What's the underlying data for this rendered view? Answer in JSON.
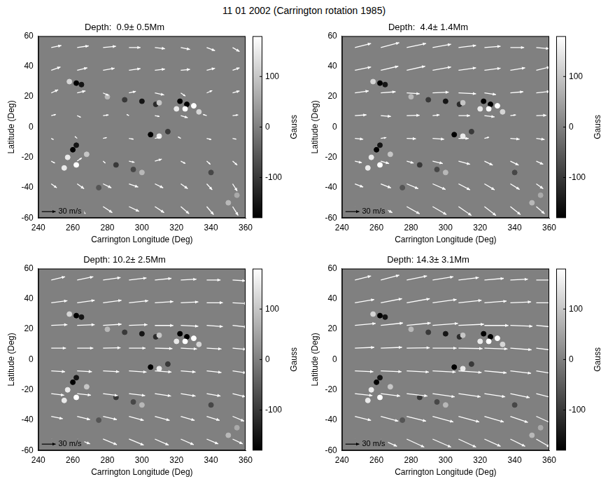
{
  "title": "11 01 2002 (Carrington rotation 1985)",
  "chart_data": [
    {
      "type": "quiver",
      "title": "Depth:  0.9± 0.5Mm",
      "x_label": "Carrington Longitude (Deg)",
      "y_label": "Latitude (Deg)",
      "xlim": [
        240,
        360
      ],
      "xticks": [
        240,
        260,
        280,
        300,
        320,
        340,
        360
      ],
      "ylim": [
        -60,
        60
      ],
      "yticks": [
        -60,
        -40,
        -20,
        0,
        20,
        40,
        60
      ],
      "grid": false,
      "colorbar_label": "Gauss",
      "colorbar_range": [
        -180,
        180
      ],
      "colorbar_ticks": [
        -100,
        0,
        100
      ],
      "key_label": "30 m/s",
      "key_value": 30,
      "grid_x": [
        247.5,
        262.5,
        277.5,
        292.5,
        307.5,
        322.5,
        337.5,
        352.5
      ],
      "grid_y": [
        -52.5,
        -37.5,
        -22.5,
        -7.5,
        7.5,
        22.5,
        37.5,
        52.5
      ],
      "u": [
        [
          15,
          18,
          20,
          22,
          20,
          18,
          15,
          12
        ],
        [
          12,
          15,
          18,
          20,
          18,
          15,
          12,
          10
        ],
        [
          8,
          10,
          5,
          12,
          15,
          10,
          8,
          10
        ],
        [
          5,
          -5,
          8,
          10,
          12,
          -6,
          10,
          8
        ],
        [
          10,
          8,
          12,
          -5,
          10,
          15,
          -8,
          12
        ],
        [
          15,
          18,
          12,
          15,
          20,
          10,
          12,
          15
        ],
        [
          20,
          22,
          25,
          25,
          22,
          20,
          18,
          15
        ],
        [
          22,
          25,
          28,
          25,
          22,
          20,
          18,
          15
        ]
      ],
      "v": [
        [
          -15,
          -18,
          -15,
          -12,
          -15,
          -18,
          -20,
          -22
        ],
        [
          -10,
          -12,
          -10,
          -8,
          -10,
          -12,
          -15,
          -18
        ],
        [
          -5,
          8,
          -5,
          -3,
          5,
          -6,
          -8,
          -10
        ],
        [
          -3,
          5,
          2,
          -2,
          3,
          4,
          -3,
          -2
        ],
        [
          3,
          -4,
          2,
          3,
          -2,
          -5,
          3,
          2
        ],
        [
          8,
          5,
          -6,
          4,
          -5,
          -8,
          6,
          5
        ],
        [
          8,
          6,
          5,
          4,
          3,
          2,
          5,
          6
        ],
        [
          5,
          4,
          3,
          0,
          -3,
          -5,
          -8,
          -10
        ]
      ],
      "magnetic_field": {
        "x": [
          262,
          265,
          258,
          300,
          308,
          310,
          322,
          326,
          325,
          330,
          320,
          333,
          290,
          280,
          260,
          262,
          257,
          262,
          255,
          268,
          305,
          310,
          315,
          285,
          295,
          300,
          340,
          350,
          355,
          275
        ],
        "y": [
          29,
          28,
          30,
          17,
          15,
          16,
          17,
          15,
          12,
          14,
          12,
          10,
          18,
          20,
          -15,
          -12,
          -20,
          -25,
          -27,
          -18,
          -5,
          -6,
          -3,
          -25,
          -28,
          -30,
          -30,
          -50,
          -45,
          -40
        ],
        "gauss": [
          -180,
          -150,
          120,
          -150,
          -120,
          100,
          -180,
          -180,
          180,
          180,
          150,
          120,
          -100,
          80,
          -180,
          -150,
          150,
          180,
          150,
          100,
          -180,
          150,
          -100,
          -100,
          -80,
          80,
          -80,
          80,
          60,
          -60
        ]
      }
    },
    {
      "type": "quiver",
      "title": "Depth:  4.4± 1.4Mm",
      "x_label": "Carrington Longitude (Deg)",
      "y_label": "Latitude (Deg)",
      "xlim": [
        240,
        360
      ],
      "xticks": [
        240,
        260,
        280,
        300,
        320,
        340,
        360
      ],
      "ylim": [
        -60,
        60
      ],
      "yticks": [
        -60,
        -40,
        -20,
        0,
        20,
        40,
        60
      ],
      "grid": false,
      "colorbar_label": "Gauss",
      "colorbar_range": [
        -180,
        180
      ],
      "colorbar_ticks": [
        -100,
        0,
        100
      ],
      "key_label": "30 m/s",
      "key_value": 30,
      "grid_x": [
        247.5,
        262.5,
        277.5,
        292.5,
        307.5,
        322.5,
        337.5,
        352.5
      ],
      "grid_y": [
        -52.5,
        -37.5,
        -22.5,
        -7.5,
        7.5,
        22.5,
        37.5,
        52.5
      ],
      "u": [
        [
          20,
          25,
          28,
          30,
          28,
          25,
          22,
          18
        ],
        [
          18,
          22,
          25,
          28,
          25,
          22,
          20,
          15
        ],
        [
          15,
          18,
          15,
          22,
          25,
          18,
          18,
          15
        ],
        [
          18,
          12,
          20,
          25,
          22,
          10,
          20,
          18
        ],
        [
          25,
          22,
          28,
          15,
          25,
          22,
          12,
          22
        ],
        [
          30,
          32,
          28,
          35,
          38,
          25,
          28,
          30
        ],
        [
          35,
          38,
          40,
          40,
          38,
          35,
          32,
          30
        ],
        [
          35,
          40,
          42,
          40,
          38,
          35,
          30,
          28
        ]
      ],
      "v": [
        [
          -12,
          -15,
          -18,
          -20,
          -22,
          -22,
          -20,
          -18
        ],
        [
          -8,
          -10,
          -12,
          -14,
          -15,
          -15,
          -14,
          -12
        ],
        [
          -4,
          -6,
          -5,
          -6,
          -8,
          -10,
          -10,
          -8
        ],
        [
          -2,
          2,
          -1,
          -2,
          0,
          3,
          -2,
          -3
        ],
        [
          2,
          -2,
          1,
          2,
          0,
          -3,
          2,
          1
        ],
        [
          5,
          3,
          -2,
          2,
          -2,
          -4,
          3,
          4
        ],
        [
          8,
          10,
          10,
          8,
          6,
          5,
          6,
          8
        ],
        [
          10,
          12,
          10,
          8,
          5,
          3,
          0,
          -3
        ]
      ],
      "magnetic_field": {
        "x": [
          262,
          265,
          258,
          300,
          308,
          310,
          322,
          326,
          325,
          330,
          320,
          333,
          290,
          280,
          260,
          262,
          257,
          262,
          255,
          268,
          305,
          310,
          315,
          285,
          295,
          300,
          340,
          350,
          355,
          275
        ],
        "y": [
          29,
          28,
          30,
          17,
          15,
          16,
          17,
          15,
          12,
          14,
          12,
          10,
          18,
          20,
          -15,
          -12,
          -20,
          -25,
          -27,
          -18,
          -5,
          -6,
          -3,
          -25,
          -28,
          -30,
          -30,
          -50,
          -45,
          -40
        ],
        "gauss": [
          -180,
          -150,
          120,
          -150,
          -120,
          100,
          -180,
          -180,
          180,
          180,
          150,
          120,
          -100,
          80,
          -180,
          -150,
          150,
          180,
          150,
          100,
          -180,
          150,
          -100,
          -100,
          -80,
          80,
          -80,
          80,
          60,
          -60
        ]
      }
    },
    {
      "type": "quiver",
      "title": "Depth: 10.2± 2.5Mm",
      "x_label": "Carrington Longitude (Deg)",
      "y_label": "Latitude (Deg)",
      "xlim": [
        240,
        360
      ],
      "xticks": [
        240,
        260,
        280,
        300,
        320,
        340,
        360
      ],
      "ylim": [
        -60,
        60
      ],
      "yticks": [
        -60,
        -40,
        -20,
        0,
        20,
        40,
        60
      ],
      "grid": false,
      "colorbar_label": "Gauss",
      "colorbar_range": [
        -180,
        180
      ],
      "colorbar_ticks": [
        -100,
        0,
        100
      ],
      "key_label": "30 m/s",
      "key_value": 30,
      "grid_x": [
        247.5,
        262.5,
        277.5,
        292.5,
        307.5,
        322.5,
        337.5,
        352.5
      ],
      "grid_y": [
        -52.5,
        -37.5,
        -22.5,
        -7.5,
        7.5,
        22.5,
        37.5,
        52.5
      ],
      "u": [
        [
          25,
          28,
          30,
          32,
          30,
          28,
          25,
          22
        ],
        [
          25,
          28,
          30,
          32,
          32,
          30,
          28,
          25
        ],
        [
          28,
          30,
          32,
          35,
          35,
          32,
          30,
          28
        ],
        [
          30,
          32,
          35,
          38,
          36,
          32,
          32,
          30
        ],
        [
          32,
          35,
          38,
          36,
          38,
          35,
          32,
          30
        ],
        [
          35,
          38,
          40,
          40,
          40,
          38,
          35,
          32
        ],
        [
          35,
          38,
          40,
          42,
          40,
          38,
          35,
          32
        ],
        [
          30,
          35,
          38,
          38,
          36,
          34,
          30,
          28
        ]
      ],
      "v": [
        [
          -10,
          -12,
          -14,
          -15,
          -15,
          -14,
          -12,
          -12
        ],
        [
          -6,
          -8,
          -8,
          -10,
          -10,
          -10,
          -10,
          -12
        ],
        [
          -4,
          -4,
          -5,
          -5,
          -6,
          -6,
          -6,
          -8
        ],
        [
          -2,
          -2,
          -2,
          -3,
          -3,
          -3,
          -4,
          -5
        ],
        [
          0,
          0,
          1,
          0,
          -1,
          -2,
          -2,
          -3
        ],
        [
          2,
          2,
          3,
          2,
          0,
          -2,
          -3,
          -4
        ],
        [
          5,
          6,
          6,
          5,
          3,
          2,
          0,
          -2
        ],
        [
          8,
          8,
          6,
          5,
          4,
          2,
          0,
          -2
        ]
      ],
      "magnetic_field": {
        "x": [
          262,
          265,
          258,
          300,
          308,
          310,
          322,
          326,
          325,
          330,
          320,
          333,
          290,
          280,
          260,
          262,
          257,
          262,
          255,
          268,
          305,
          310,
          315,
          285,
          295,
          300,
          340,
          350,
          355,
          275
        ],
        "y": [
          29,
          28,
          30,
          17,
          15,
          16,
          17,
          15,
          12,
          14,
          12,
          10,
          18,
          20,
          -15,
          -12,
          -20,
          -25,
          -27,
          -18,
          -5,
          -6,
          -3,
          -25,
          -28,
          -30,
          -30,
          -50,
          -45,
          -40
        ],
        "gauss": [
          -180,
          -150,
          120,
          -150,
          -120,
          100,
          -180,
          -180,
          180,
          180,
          150,
          120,
          -100,
          80,
          -180,
          -150,
          150,
          180,
          150,
          100,
          -180,
          150,
          -100,
          -100,
          -80,
          80,
          -80,
          80,
          60,
          -60
        ]
      }
    },
    {
      "type": "quiver",
      "title": "Depth: 14.3± 3.1Mm",
      "x_label": "Carrington Longitude (Deg)",
      "y_label": "Latitude (Deg)",
      "xlim": [
        240,
        360
      ],
      "xticks": [
        240,
        260,
        280,
        300,
        320,
        340,
        360
      ],
      "ylim": [
        -60,
        60
      ],
      "yticks": [
        -60,
        -40,
        -20,
        0,
        20,
        40,
        60
      ],
      "grid": false,
      "colorbar_label": "Gauss",
      "colorbar_range": [
        -180,
        180
      ],
      "colorbar_ticks": [
        -100,
        0,
        100
      ],
      "key_label": "30 m/s",
      "key_value": 30,
      "grid_x": [
        247.5,
        262.5,
        277.5,
        292.5,
        307.5,
        322.5,
        337.5,
        352.5
      ],
      "grid_y": [
        -52.5,
        -37.5,
        -22.5,
        -7.5,
        7.5,
        22.5,
        37.5,
        52.5
      ],
      "u": [
        [
          30,
          35,
          38,
          40,
          38,
          35,
          32,
          30
        ],
        [
          35,
          38,
          42,
          45,
          45,
          42,
          38,
          35
        ],
        [
          38,
          42,
          45,
          48,
          48,
          45,
          42,
          40
        ],
        [
          40,
          45,
          48,
          50,
          50,
          48,
          45,
          42
        ],
        [
          42,
          46,
          50,
          52,
          52,
          50,
          46,
          42
        ],
        [
          45,
          48,
          52,
          55,
          55,
          52,
          48,
          45
        ],
        [
          42,
          46,
          50,
          52,
          50,
          48,
          45,
          42
        ],
        [
          35,
          40,
          44,
          45,
          44,
          42,
          38,
          35
        ]
      ],
      "v": [
        [
          -15,
          -18,
          -20,
          -20,
          -20,
          -18,
          -18,
          -20
        ],
        [
          -10,
          -12,
          -12,
          -14,
          -14,
          -14,
          -15,
          -18
        ],
        [
          -5,
          -6,
          -6,
          -8,
          -8,
          -8,
          -10,
          -12
        ],
        [
          -2,
          -2,
          -3,
          -3,
          -4,
          -5,
          -6,
          -8
        ],
        [
          2,
          2,
          1,
          0,
          -1,
          -2,
          -4,
          -6
        ],
        [
          5,
          6,
          6,
          5,
          3,
          0,
          -2,
          -5
        ],
        [
          8,
          10,
          10,
          8,
          6,
          4,
          2,
          0
        ],
        [
          10,
          12,
          10,
          8,
          6,
          4,
          2,
          0
        ]
      ],
      "magnetic_field": {
        "x": [
          262,
          265,
          258,
          300,
          308,
          310,
          322,
          326,
          325,
          330,
          320,
          333,
          290,
          280,
          260,
          262,
          257,
          262,
          255,
          268,
          305,
          310,
          315,
          285,
          295,
          300,
          340,
          350,
          355,
          275
        ],
        "y": [
          29,
          28,
          30,
          17,
          15,
          16,
          17,
          15,
          12,
          14,
          12,
          10,
          18,
          20,
          -15,
          -12,
          -20,
          -25,
          -27,
          -18,
          -5,
          -6,
          -3,
          -25,
          -28,
          -30,
          -30,
          -50,
          -45,
          -40
        ],
        "gauss": [
          -180,
          -150,
          120,
          -150,
          -120,
          100,
          -180,
          -180,
          180,
          180,
          150,
          120,
          -100,
          80,
          -180,
          -150,
          150,
          180,
          150,
          100,
          -180,
          150,
          -100,
          -100,
          -80,
          80,
          -80,
          80,
          60,
          -60
        ]
      }
    }
  ]
}
